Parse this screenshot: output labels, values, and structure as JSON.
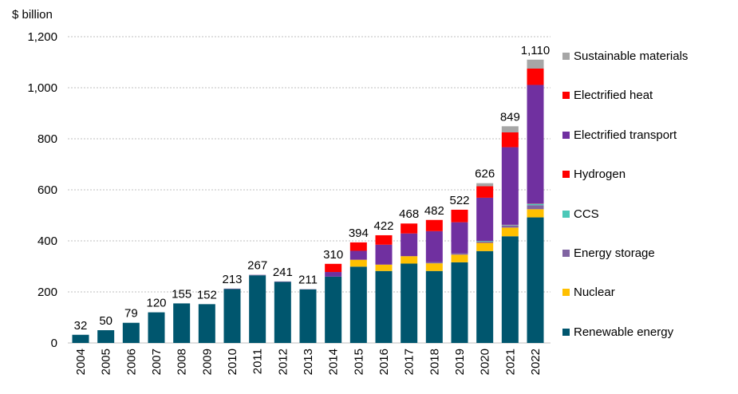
{
  "chart_data": {
    "type": "bar",
    "stacked": true,
    "ylabel": "$ billion",
    "ylim": [
      0,
      1200
    ],
    "yticks": [
      "0",
      "200",
      "400",
      "600",
      "800",
      "1,000",
      "1,200"
    ],
    "ytick_values": [
      0,
      200,
      400,
      600,
      800,
      1000,
      1200
    ],
    "grid": "horizontal dotted",
    "legend_position": "right",
    "categories": [
      "2004",
      "2005",
      "2006",
      "2007",
      "2008",
      "2009",
      "2010",
      "2011",
      "2012",
      "2013",
      "2014",
      "2015",
      "2016",
      "2017",
      "2018",
      "2019",
      "2020",
      "2021",
      "2022"
    ],
    "totals": [
      "32",
      "50",
      "79",
      "120",
      "155",
      "152",
      "213",
      "267",
      "241",
      "211",
      "310",
      "394",
      "422",
      "468",
      "482",
      "522",
      "626",
      "849",
      "1,110"
    ],
    "series": [
      {
        "name": "Renewable energy",
        "color": "#00566E",
        "values": [
          32,
          50,
          79,
          120,
          155,
          152,
          211,
          265,
          239,
          210,
          260,
          299,
          282,
          311,
          282,
          316,
          360,
          418,
          492
        ]
      },
      {
        "name": "Nuclear",
        "color": "#FFC000",
        "values": [
          0,
          0,
          0,
          0,
          0,
          0,
          0,
          0,
          0,
          0,
          0,
          27,
          25,
          29,
          30,
          30,
          32,
          34,
          32
        ]
      },
      {
        "name": "Energy storage",
        "color": "#8064A2",
        "values": [
          0,
          0,
          0,
          0,
          0,
          0,
          2,
          2,
          2,
          1,
          0,
          0,
          0,
          0,
          5,
          5,
          6,
          8,
          16
        ]
      },
      {
        "name": "CCS",
        "color": "#4BC8B8",
        "values": [
          0,
          0,
          0,
          0,
          0,
          0,
          0,
          0,
          0,
          0,
          0,
          0,
          0,
          0,
          0,
          0,
          2,
          2,
          5
        ]
      },
      {
        "name": "Hydrogen",
        "color": "#FF0000",
        "values": [
          0,
          0,
          0,
          0,
          0,
          0,
          0,
          0,
          0,
          0,
          0,
          0,
          0,
          0,
          0,
          0,
          0,
          1,
          1
        ]
      },
      {
        "name": "Electrified transport",
        "color": "#7030A0",
        "values": [
          0,
          0,
          0,
          0,
          0,
          0,
          0,
          0,
          0,
          0,
          18,
          35,
          78,
          89,
          121,
          122,
          169,
          304,
          465
        ]
      },
      {
        "name": "Electrified heat",
        "color": "#FF0000",
        "values": [
          0,
          0,
          0,
          0,
          0,
          0,
          0,
          0,
          0,
          0,
          32,
          33,
          37,
          39,
          44,
          49,
          45,
          58,
          64
        ]
      },
      {
        "name": "Sustainable materials",
        "color": "#A6A6A6",
        "values": [
          0,
          0,
          0,
          0,
          0,
          0,
          0,
          0,
          0,
          0,
          0,
          0,
          0,
          0,
          0,
          0,
          12,
          24,
          35
        ]
      }
    ]
  }
}
